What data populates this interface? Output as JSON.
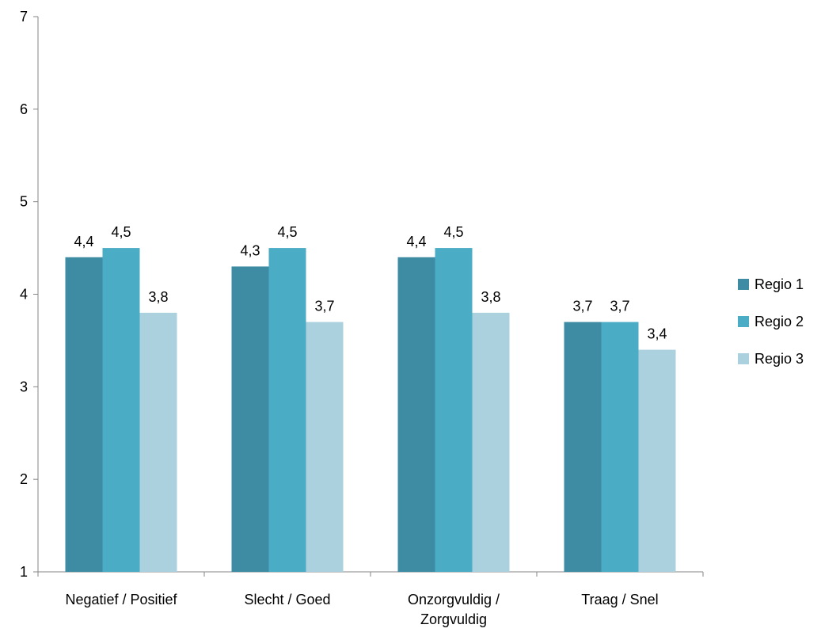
{
  "chart_data": {
    "type": "bar",
    "title": "",
    "xlabel": "",
    "ylabel": "",
    "ylim": [
      1,
      7
    ],
    "yticks": [
      1,
      2,
      3,
      4,
      5,
      6,
      7
    ],
    "grid": false,
    "legend_position": "right",
    "categories": [
      [
        "Negatief / Positief"
      ],
      [
        "Slecht / Goed"
      ],
      [
        "Onzorgvuldig /",
        "Zorgvuldig"
      ],
      [
        "Traag / Snel"
      ]
    ],
    "series": [
      {
        "name": "Regio 1",
        "color": "#3d8ca3",
        "values": [
          4.4,
          4.3,
          4.4,
          3.7
        ],
        "labels": [
          "4,4",
          "4,3",
          "4,4",
          "3,7"
        ]
      },
      {
        "name": "Regio 2",
        "color": "#4bacc6",
        "values": [
          4.5,
          4.5,
          4.5,
          3.7
        ],
        "labels": [
          "4,5",
          "4,5",
          "4,5",
          "3,7"
        ]
      },
      {
        "name": "Regio 3",
        "color": "#abd0de",
        "values": [
          3.8,
          3.7,
          3.8,
          3.4
        ],
        "labels": [
          "3,8",
          "3,7",
          "3,8",
          "3,4"
        ]
      }
    ]
  }
}
